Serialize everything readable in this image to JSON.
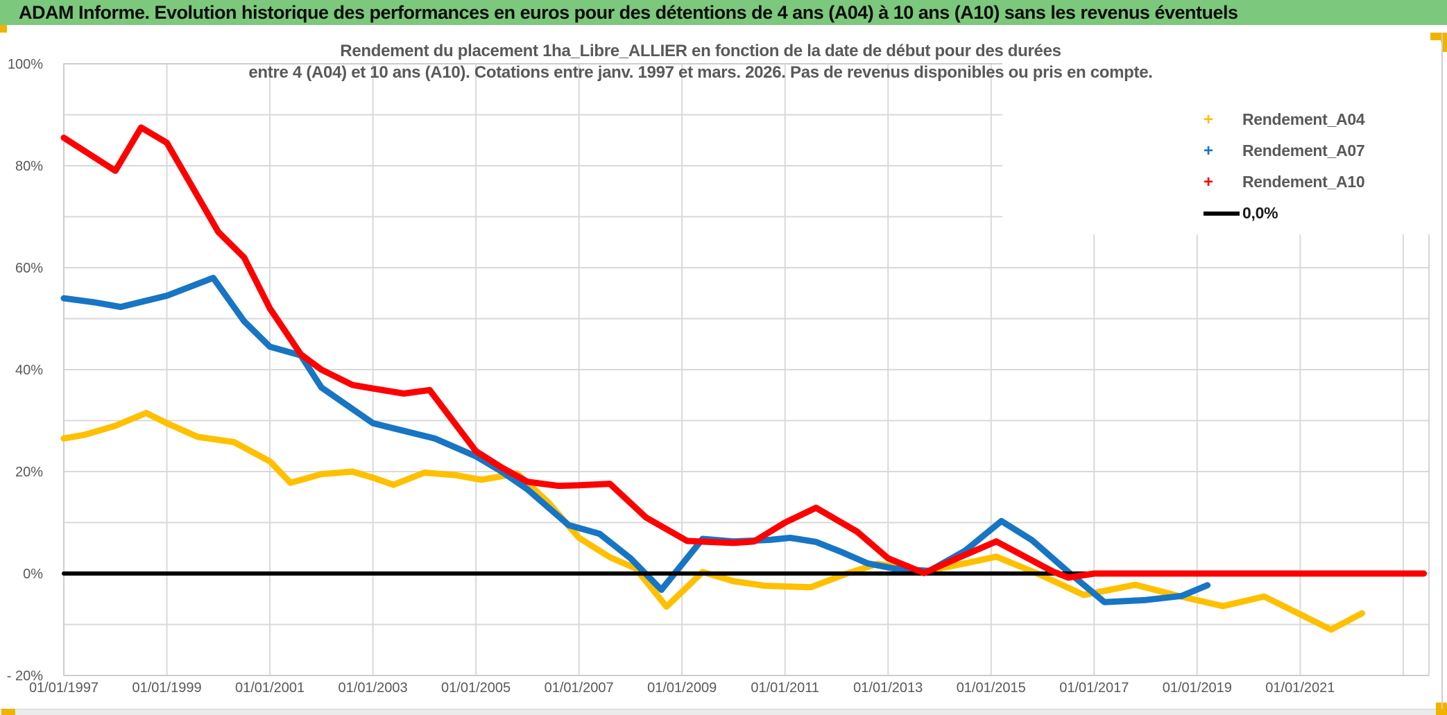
{
  "banner": {
    "title": "ADAM Informe. Evolution historique des performances en euros pour des détentions de 4 ans (A04) à 10 ans (A10) sans les revenus éventuels"
  },
  "chart_data": {
    "type": "line",
    "title_lines": [
      "Rendement du placement 1ha_Libre_ALLIER en fonction de la date de début pour des durées",
      "entre 4 (A04) et 10 ans (A10). Cotations entre janv. 1997 et mars. 2026. Pas de revenus disponibles ou pris en compte."
    ],
    "x_axis": {
      "min_year": 1997.0,
      "max_year": 2023.5,
      "gridline_years": [
        1997,
        1999,
        2001,
        2003,
        2005,
        2007,
        2009,
        2011,
        2013,
        2015,
        2017,
        2019,
        2021,
        2023
      ],
      "ticks": [
        {
          "year": 1997,
          "label": "01/01/1997"
        },
        {
          "year": 1999,
          "label": "01/01/1999"
        },
        {
          "year": 2001,
          "label": "01/01/2001"
        },
        {
          "year": 2003,
          "label": "01/01/2003"
        },
        {
          "year": 2005,
          "label": "01/01/2005"
        },
        {
          "year": 2007,
          "label": "01/01/2007"
        },
        {
          "year": 2009,
          "label": "01/01/2009"
        },
        {
          "year": 2011,
          "label": "01/01/2011"
        },
        {
          "year": 2013,
          "label": "01/01/2013"
        },
        {
          "year": 2015,
          "label": "01/01/2015"
        },
        {
          "year": 2017,
          "label": "01/01/2017"
        },
        {
          "year": 2019,
          "label": "01/01/2019"
        },
        {
          "year": 2021,
          "label": "01/01/2021"
        }
      ]
    },
    "y_axis": {
      "min": -20,
      "max": 100,
      "gridline_step": 10,
      "ticks": [
        {
          "value": 100,
          "label": "100%"
        },
        {
          "value": 80,
          "label": "80%"
        },
        {
          "value": 60,
          "label": "60%"
        },
        {
          "value": 40,
          "label": "40%"
        },
        {
          "value": 20,
          "label": "20%"
        },
        {
          "value": 0,
          "label": "0%"
        },
        {
          "value": -20,
          "label": "- 20%"
        }
      ]
    },
    "legend": [
      {
        "label": "Rendement_A04",
        "marker": "+",
        "color": "#ffc000"
      },
      {
        "label": "Rendement_A07",
        "marker": "+",
        "color": "#1775c4"
      },
      {
        "label": "Rendement_A10",
        "marker": "+",
        "color": "#fe0000"
      },
      {
        "label": "0,0%",
        "marker": "line",
        "color": "#000000"
      }
    ],
    "grid": "on",
    "legend_position": "top-right",
    "series": [
      {
        "name": "Rendement_A04",
        "color": "#ffc000",
        "width": 9,
        "points": [
          [
            1997.0,
            26.5
          ],
          [
            1997.4,
            27.2
          ],
          [
            1998.0,
            29.0
          ],
          [
            1998.6,
            31.5
          ],
          [
            1999.0,
            29.5
          ],
          [
            1999.6,
            26.8
          ],
          [
            2000.3,
            25.8
          ],
          [
            2001.0,
            22.0
          ],
          [
            2001.4,
            17.8
          ],
          [
            2002.0,
            19.5
          ],
          [
            2002.6,
            20.0
          ],
          [
            2003.0,
            18.8
          ],
          [
            2003.4,
            17.4
          ],
          [
            2004.0,
            19.8
          ],
          [
            2004.6,
            19.3
          ],
          [
            2005.1,
            18.4
          ],
          [
            2005.8,
            19.6
          ],
          [
            2006.4,
            14.0
          ],
          [
            2007.0,
            7.0
          ],
          [
            2007.6,
            3.2
          ],
          [
            2008.1,
            1.0
          ],
          [
            2008.7,
            -6.5
          ],
          [
            2009.4,
            0.3
          ],
          [
            2010.0,
            -1.5
          ],
          [
            2010.6,
            -2.4
          ],
          [
            2011.5,
            -2.7
          ],
          [
            2012.2,
            0.0
          ],
          [
            2012.8,
            1.9
          ],
          [
            2013.7,
            0.4
          ],
          [
            2014.5,
            2.0
          ],
          [
            2015.1,
            3.3
          ],
          [
            2015.9,
            0.0
          ],
          [
            2016.8,
            -4.2
          ],
          [
            2017.8,
            -2.2
          ],
          [
            2018.6,
            -4.3
          ],
          [
            2019.5,
            -6.4
          ],
          [
            2020.3,
            -4.5
          ],
          [
            2021.0,
            -8.0
          ],
          [
            2021.6,
            -11.0
          ],
          [
            2022.2,
            -7.8
          ]
        ]
      },
      {
        "name": "Rendement_A07",
        "color": "#1775c4",
        "width": 9,
        "points": [
          [
            1997.0,
            54.0
          ],
          [
            1997.6,
            53.2
          ],
          [
            1998.1,
            52.3
          ],
          [
            1999.0,
            54.5
          ],
          [
            1999.9,
            58.0
          ],
          [
            2000.5,
            49.5
          ],
          [
            2001.0,
            44.5
          ],
          [
            2001.6,
            42.8
          ],
          [
            2002.0,
            36.5
          ],
          [
            2002.5,
            33.0
          ],
          [
            2003.0,
            29.5
          ],
          [
            2003.6,
            28.0
          ],
          [
            2004.2,
            26.5
          ],
          [
            2005.0,
            23.0
          ],
          [
            2005.5,
            20.0
          ],
          [
            2006.0,
            16.5
          ],
          [
            2006.8,
            9.5
          ],
          [
            2007.4,
            7.8
          ],
          [
            2008.0,
            3.0
          ],
          [
            2008.6,
            -3.2
          ],
          [
            2009.4,
            6.8
          ],
          [
            2010.0,
            6.3
          ],
          [
            2010.7,
            6.6
          ],
          [
            2011.1,
            7.0
          ],
          [
            2011.6,
            6.2
          ],
          [
            2012.1,
            4.2
          ],
          [
            2012.6,
            2.0
          ],
          [
            2013.1,
            1.0
          ],
          [
            2013.8,
            0.5
          ],
          [
            2014.5,
            4.5
          ],
          [
            2015.2,
            10.3
          ],
          [
            2015.8,
            6.5
          ],
          [
            2016.5,
            0.3
          ],
          [
            2017.2,
            -5.6
          ],
          [
            2018.0,
            -5.2
          ],
          [
            2018.7,
            -4.4
          ],
          [
            2019.2,
            -2.3
          ]
        ]
      },
      {
        "name": "0,0%",
        "color": "#000000",
        "width": 6,
        "points": [
          [
            1997.0,
            0.0
          ],
          [
            2023.4,
            0.0
          ]
        ]
      },
      {
        "name": "Rendement_A10",
        "color": "#fe0000",
        "width": 9,
        "points": [
          [
            1997.0,
            85.5
          ],
          [
            1998.0,
            79.0
          ],
          [
            1998.5,
            87.5
          ],
          [
            1999.0,
            84.5
          ],
          [
            2000.0,
            67.0
          ],
          [
            2000.5,
            62.0
          ],
          [
            2001.0,
            52.0
          ],
          [
            2001.6,
            43.0
          ],
          [
            2002.0,
            40.0
          ],
          [
            2002.6,
            37.0
          ],
          [
            2003.0,
            36.3
          ],
          [
            2003.6,
            35.3
          ],
          [
            2004.1,
            36.0
          ],
          [
            2005.0,
            24.0
          ],
          [
            2005.5,
            20.8
          ],
          [
            2006.0,
            18.0
          ],
          [
            2006.6,
            17.2
          ],
          [
            2007.0,
            17.3
          ],
          [
            2007.6,
            17.6
          ],
          [
            2008.3,
            11.0
          ],
          [
            2009.1,
            6.4
          ],
          [
            2010.0,
            6.0
          ],
          [
            2010.4,
            6.3
          ],
          [
            2011.0,
            10.0
          ],
          [
            2011.6,
            12.9
          ],
          [
            2012.4,
            8.2
          ],
          [
            2013.0,
            3.0
          ],
          [
            2013.7,
            0.1
          ],
          [
            2014.3,
            2.8
          ],
          [
            2015.1,
            6.3
          ],
          [
            2016.2,
            0.4
          ],
          [
            2016.5,
            -0.8
          ],
          [
            2017.0,
            0.0
          ],
          [
            2023.4,
            0.0
          ]
        ]
      }
    ],
    "colors": {
      "banner_green": "#7cc87c",
      "accent_amber": "#f0b400",
      "gridline": "#d9d9d9",
      "plot_border": "#c9c9c9",
      "axis_text": "#595959"
    }
  }
}
